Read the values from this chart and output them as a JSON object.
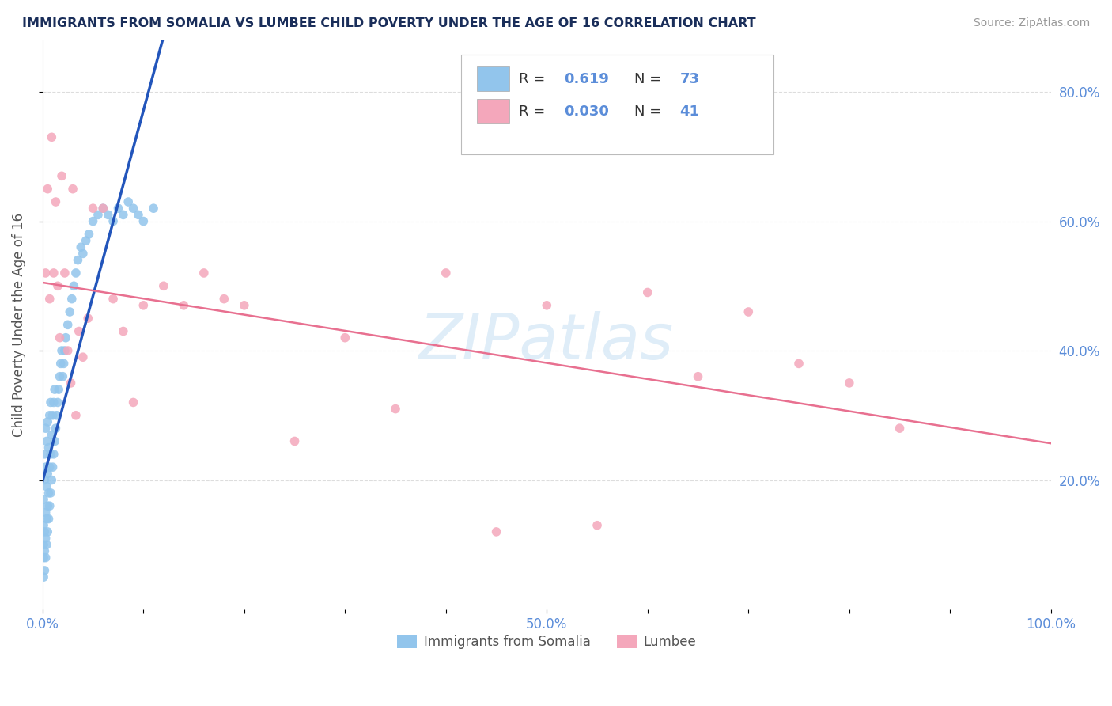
{
  "title": "IMMIGRANTS FROM SOMALIA VS LUMBEE CHILD POVERTY UNDER THE AGE OF 16 CORRELATION CHART",
  "source": "Source: ZipAtlas.com",
  "ylabel": "Child Poverty Under the Age of 16",
  "xlim": [
    0.0,
    1.0
  ],
  "ylim": [
    0.0,
    0.88
  ],
  "xtick_positions": [
    0.0,
    0.1,
    0.2,
    0.3,
    0.4,
    0.5,
    0.6,
    0.7,
    0.8,
    0.9,
    1.0
  ],
  "xtick_labels": [
    "0.0%",
    "",
    "",
    "",
    "",
    "50.0%",
    "",
    "",
    "",
    "",
    "100.0%"
  ],
  "ytick_positions": [
    0.2,
    0.4,
    0.6,
    0.8
  ],
  "ytick_labels": [
    "20.0%",
    "40.0%",
    "60.0%",
    "80.0%"
  ],
  "somalia_color": "#92C5EC",
  "lumbee_color": "#F4A7BB",
  "somalia_line_color": "#2255BB",
  "lumbee_line_color": "#E87090",
  "somalia_R": 0.619,
  "somalia_N": 73,
  "lumbee_R": 0.03,
  "lumbee_N": 41,
  "watermark": "ZIPatlas",
  "title_color": "#1a2e5a",
  "tick_color": "#5b8dd9",
  "ylabel_color": "#555555",
  "source_color": "#999999",
  "grid_color": "#dddddd",
  "somalia_scatter_x": [
    0.001,
    0.001,
    0.001,
    0.001,
    0.001,
    0.002,
    0.002,
    0.002,
    0.002,
    0.002,
    0.003,
    0.003,
    0.003,
    0.003,
    0.003,
    0.004,
    0.004,
    0.004,
    0.004,
    0.005,
    0.005,
    0.005,
    0.005,
    0.006,
    0.006,
    0.006,
    0.007,
    0.007,
    0.007,
    0.008,
    0.008,
    0.008,
    0.009,
    0.009,
    0.01,
    0.01,
    0.011,
    0.011,
    0.012,
    0.012,
    0.013,
    0.014,
    0.015,
    0.016,
    0.017,
    0.018,
    0.019,
    0.02,
    0.021,
    0.022,
    0.023,
    0.025,
    0.027,
    0.029,
    0.031,
    0.033,
    0.035,
    0.038,
    0.04,
    0.043,
    0.046,
    0.05,
    0.055,
    0.06,
    0.065,
    0.07,
    0.075,
    0.08,
    0.085,
    0.09,
    0.095,
    0.1,
    0.11
  ],
  "somalia_scatter_y": [
    0.05,
    0.08,
    0.1,
    0.13,
    0.17,
    0.06,
    0.09,
    0.12,
    0.2,
    0.24,
    0.08,
    0.11,
    0.15,
    0.22,
    0.28,
    0.1,
    0.14,
    0.19,
    0.26,
    0.12,
    0.16,
    0.21,
    0.29,
    0.14,
    0.18,
    0.25,
    0.16,
    0.22,
    0.3,
    0.18,
    0.24,
    0.32,
    0.2,
    0.27,
    0.22,
    0.3,
    0.24,
    0.32,
    0.26,
    0.34,
    0.28,
    0.3,
    0.32,
    0.34,
    0.36,
    0.38,
    0.4,
    0.36,
    0.38,
    0.4,
    0.42,
    0.44,
    0.46,
    0.48,
    0.5,
    0.52,
    0.54,
    0.56,
    0.55,
    0.57,
    0.58,
    0.6,
    0.61,
    0.62,
    0.61,
    0.6,
    0.62,
    0.61,
    0.63,
    0.62,
    0.61,
    0.6,
    0.62
  ],
  "lumbee_scatter_x": [
    0.003,
    0.005,
    0.007,
    0.009,
    0.011,
    0.013,
    0.015,
    0.017,
    0.019,
    0.022,
    0.025,
    0.028,
    0.03,
    0.033,
    0.036,
    0.04,
    0.045,
    0.05,
    0.06,
    0.07,
    0.08,
    0.09,
    0.1,
    0.12,
    0.14,
    0.16,
    0.18,
    0.2,
    0.25,
    0.3,
    0.35,
    0.4,
    0.45,
    0.5,
    0.55,
    0.6,
    0.65,
    0.7,
    0.75,
    0.8,
    0.85
  ],
  "lumbee_scatter_y": [
    0.52,
    0.65,
    0.48,
    0.73,
    0.52,
    0.63,
    0.5,
    0.42,
    0.67,
    0.52,
    0.4,
    0.35,
    0.65,
    0.3,
    0.43,
    0.39,
    0.45,
    0.62,
    0.62,
    0.48,
    0.43,
    0.32,
    0.47,
    0.5,
    0.47,
    0.52,
    0.48,
    0.47,
    0.26,
    0.42,
    0.31,
    0.52,
    0.12,
    0.47,
    0.13,
    0.49,
    0.36,
    0.46,
    0.38,
    0.35,
    0.28
  ],
  "somalia_line_x": [
    0.0,
    0.38
  ],
  "lumbee_line_x": [
    0.0,
    1.0
  ],
  "legend_somalia_label": "R =  0.619   N = 73",
  "legend_lumbee_label": "R =  0.030   N = 41"
}
